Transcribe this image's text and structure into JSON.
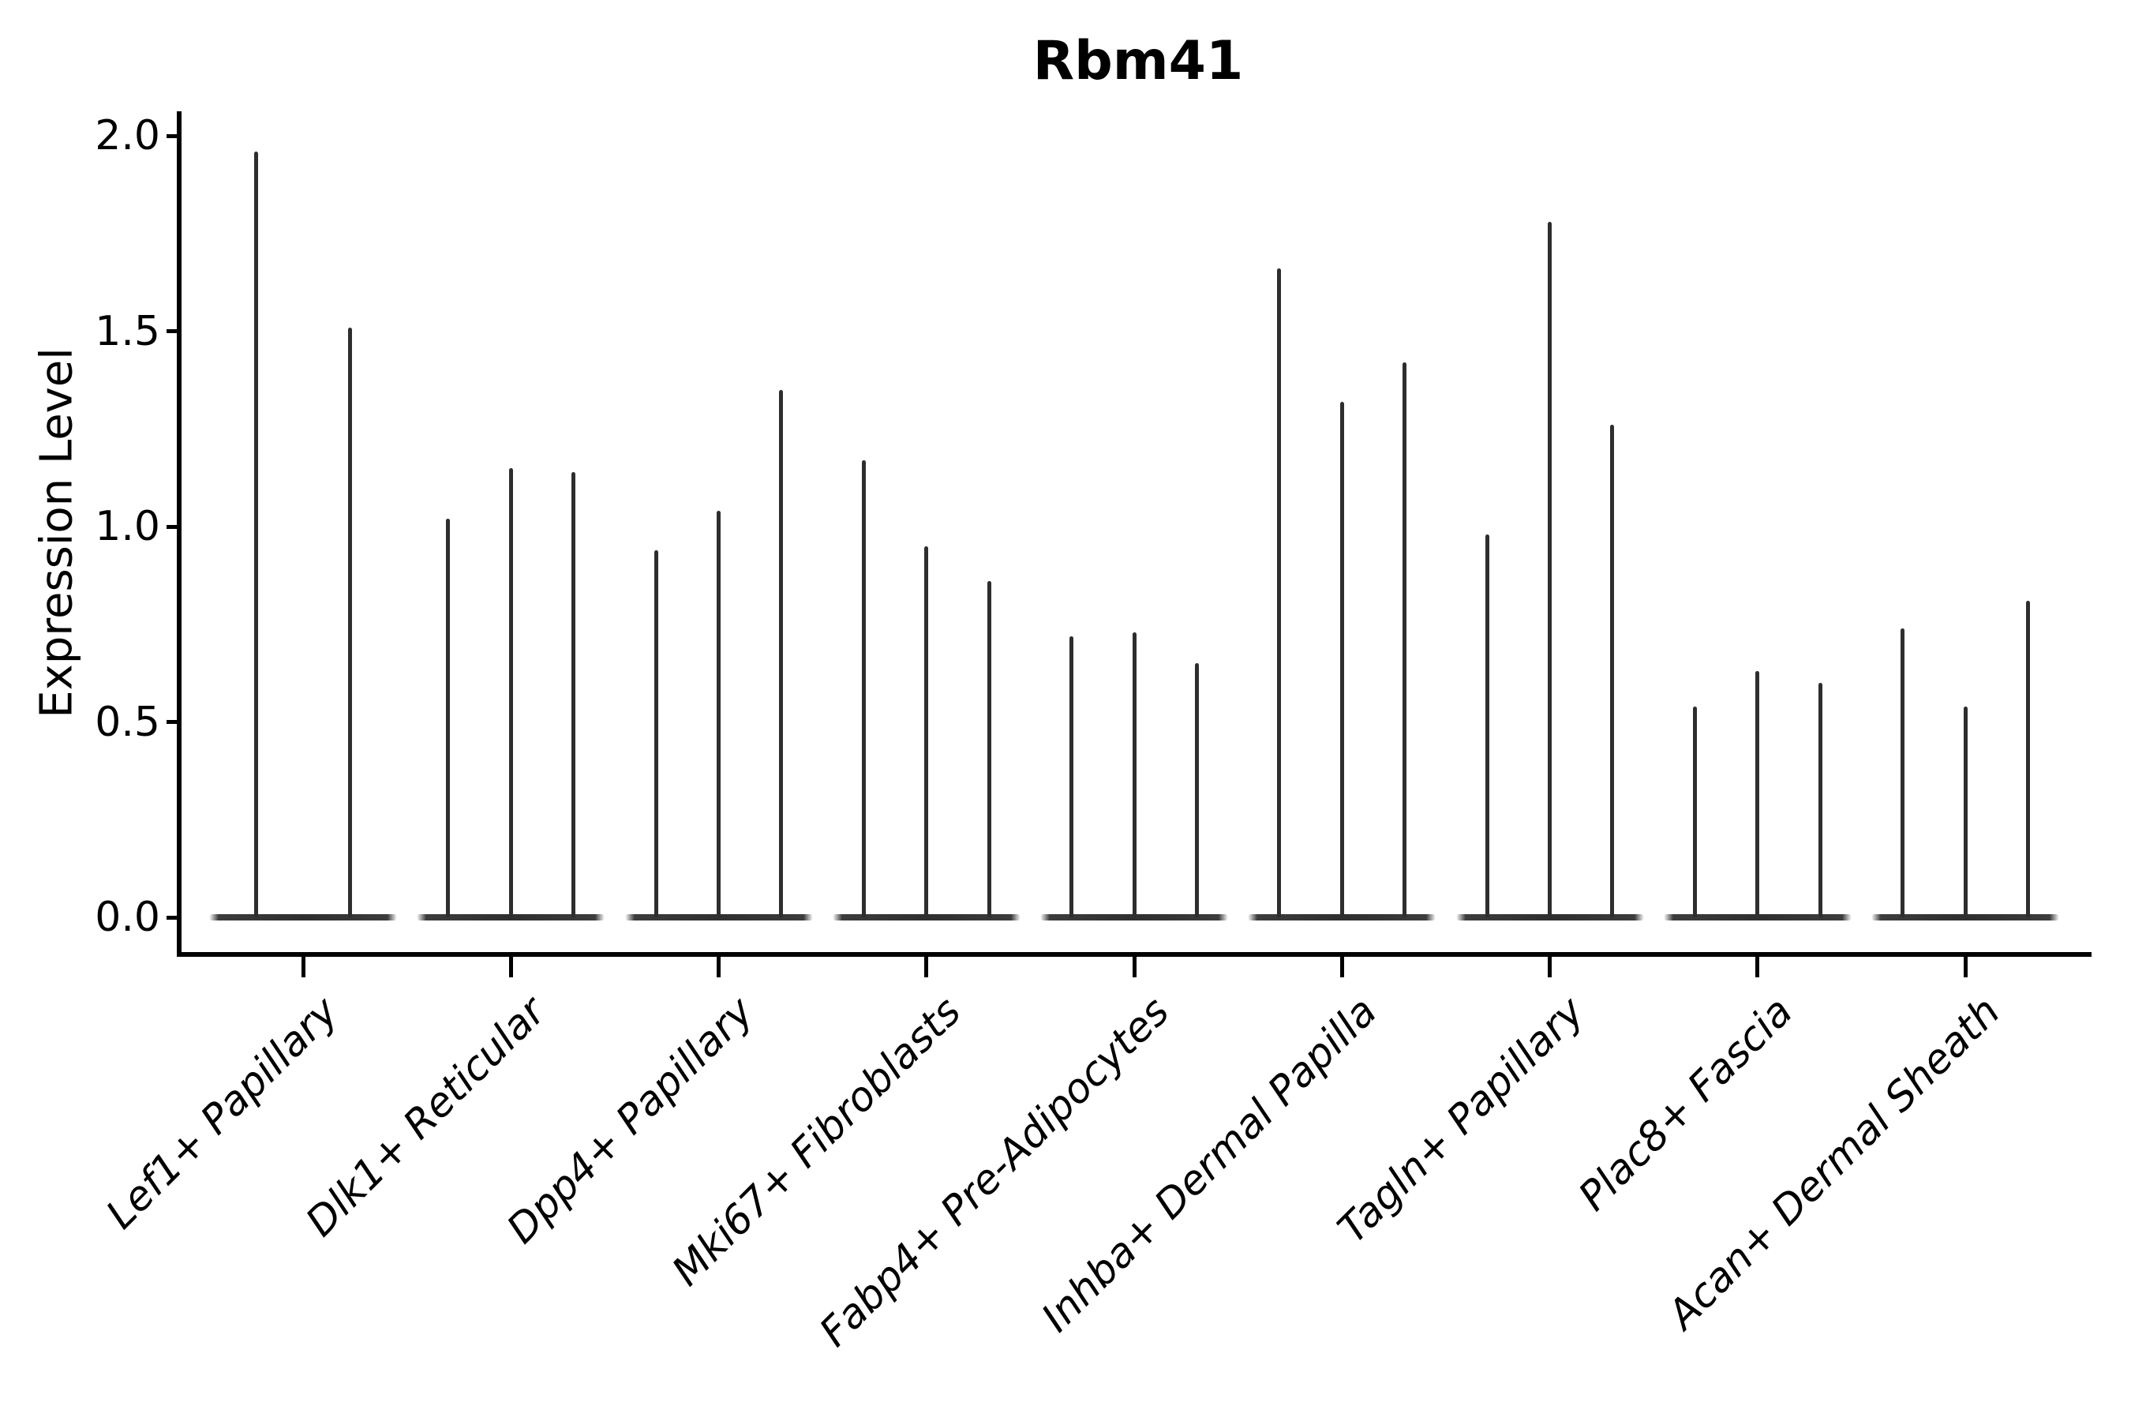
{
  "chart_data": {
    "type": "violin",
    "title": "Rbm41",
    "ylabel": "Expression Level",
    "xlabel": "",
    "ylim": [
      0,
      2.06
    ],
    "yticks": [
      0.0,
      0.5,
      1.0,
      1.5,
      2.0
    ],
    "ytick_labels": [
      "0.0",
      "0.5",
      "1.0",
      "1.5",
      "2.0"
    ],
    "grid": false,
    "legend": false,
    "categories": [
      "Lef1+ Papillary",
      "Dlk1+ Reticular",
      "Dpp4+ Papillary",
      "Mki67+ Fibroblasts",
      "Fabp4+ Pre-Adipocytes",
      "Inhba+ Dermal Papilla",
      "Tagln+ Papillary",
      "Plac8+ Fascia",
      "Acan+ Dermal Sheath"
    ],
    "violin_shape_note": "each violin is needle-thin: a wide flat base at expression 0 with a hairline spike rising to its maximum value",
    "groups": [
      {
        "category": "Lef1+ Papillary",
        "violins": [
          {
            "peak": 1.96
          },
          {
            "peak": 1.51
          }
        ]
      },
      {
        "category": "Dlk1+ Reticular",
        "violins": [
          {
            "peak": 1.02
          },
          {
            "peak": 1.15
          },
          {
            "peak": 1.14
          }
        ]
      },
      {
        "category": "Dpp4+ Papillary",
        "violins": [
          {
            "peak": 0.94
          },
          {
            "peak": 1.04
          },
          {
            "peak": 1.35
          }
        ]
      },
      {
        "category": "Mki67+ Fibroblasts",
        "violins": [
          {
            "peak": 1.17
          },
          {
            "peak": 0.95
          },
          {
            "peak": 0.86
          }
        ]
      },
      {
        "category": "Fabp4+ Pre-Adipocytes",
        "violins": [
          {
            "peak": 0.72
          },
          {
            "peak": 0.73
          },
          {
            "peak": 0.65
          }
        ]
      },
      {
        "category": "Inhba+ Dermal Papilla",
        "violins": [
          {
            "peak": 1.66
          },
          {
            "peak": 1.32
          },
          {
            "peak": 1.42
          }
        ]
      },
      {
        "category": "Tagln+ Papillary",
        "violins": [
          {
            "peak": 0.98
          },
          {
            "peak": 1.78
          },
          {
            "peak": 1.26
          }
        ]
      },
      {
        "category": "Plac8+ Fascia",
        "violins": [
          {
            "peak": 0.54
          },
          {
            "peak": 0.63
          },
          {
            "peak": 0.6
          }
        ]
      },
      {
        "category": "Acan+ Dermal Sheath",
        "violins": [
          {
            "peak": 0.74
          },
          {
            "peak": 0.54
          },
          {
            "peak": 0.81
          }
        ]
      }
    ],
    "colors": {
      "spike": "#2e2e2e",
      "base": "#333333",
      "axis": "#000000",
      "text": "#000000",
      "background": "#ffffff"
    }
  }
}
